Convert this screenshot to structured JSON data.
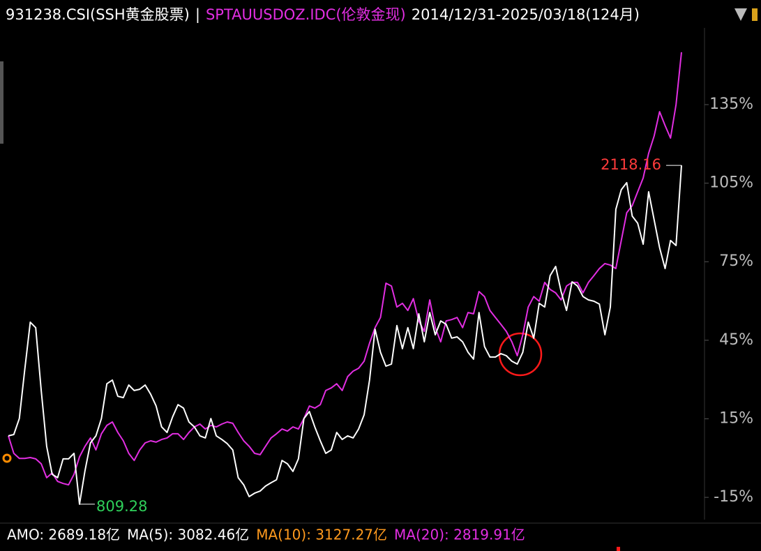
{
  "chart_data": {
    "type": "line",
    "title_parts": [
      {
        "text": "931238.CSI(SSH黄金股票)",
        "color": "#ffffff"
      },
      {
        "text": "|",
        "color": "#ffffff"
      },
      {
        "text": "SPTAUUSDOZ.IDC(伦敦金现)",
        "color": "#e22ee2"
      },
      {
        "text": "2014/12/31-2025/03/18(124月)",
        "color": "#ffffff"
      }
    ],
    "ylim": [
      -23.5,
      164.3
    ],
    "yticks": [
      {
        "value": -15,
        "label": "-15%"
      },
      {
        "value": 15,
        "label": "15%"
      },
      {
        "value": 45,
        "label": "45%"
      },
      {
        "value": 75,
        "label": "75%"
      },
      {
        "value": 105,
        "label": "105%"
      },
      {
        "value": 135,
        "label": "135%"
      }
    ],
    "series": [
      {
        "name": "931238.CSI(SSH黄金股票)",
        "color": "#ffffff",
        "values": [
          8.5,
          9.0,
          15.1,
          33.8,
          51.9,
          49.8,
          25.8,
          4.5,
          -6.2,
          -7.5,
          -0.3,
          -0.3,
          1.8,
          -17.6,
          -4.9,
          5.8,
          8.5,
          15.1,
          28.4,
          29.8,
          23.6,
          23.1,
          27.9,
          25.8,
          26.3,
          27.9,
          24.4,
          19.9,
          11.9,
          9.8,
          15.7,
          20.4,
          19.1,
          13.8,
          11.9,
          8.5,
          7.7,
          15.1,
          8.5,
          7.1,
          5.5,
          3.1,
          -7.5,
          -10.2,
          -14.7,
          -13.4,
          -12.6,
          -10.7,
          -9.4,
          -8.3,
          -0.9,
          -2.2,
          -5.1,
          -0.3,
          15.1,
          17.8,
          11.9,
          6.6,
          1.8,
          3.1,
          9.8,
          7.1,
          8.5,
          7.7,
          11.1,
          16.5,
          29.8,
          49.2,
          40.4,
          35.1,
          35.9,
          50.6,
          41.8,
          49.8,
          41.8,
          55.1,
          44.4,
          55.6,
          47.1,
          52.4,
          51.1,
          45.8,
          46.3,
          44.4,
          40.4,
          37.8,
          55.6,
          42.6,
          38.6,
          38.6,
          39.9,
          39.1,
          37.0,
          35.9,
          40.4,
          51.9,
          45.8,
          59.1,
          57.7,
          69.7,
          73.2,
          63.6,
          56.4,
          67.3,
          65.7,
          61.7,
          60.4,
          59.9,
          58.8,
          47.1,
          57.7,
          95.0,
          102.5,
          105.2,
          92.4,
          89.7,
          81.7,
          101.7,
          91.0,
          80.4,
          72.4,
          83.1,
          81.2,
          111.8
        ]
      },
      {
        "name": "SPTAUUSDOZ.IDC(伦敦金现)",
        "color": "#e22ee2",
        "values": [
          8.5,
          1.8,
          -0.1,
          -0.1,
          0.2,
          -0.3,
          -2.2,
          -7.5,
          -5.7,
          -8.9,
          -9.7,
          -10.2,
          -6.2,
          0.5,
          4.5,
          7.7,
          3.1,
          9.3,
          12.5,
          13.8,
          9.8,
          6.6,
          1.8,
          -0.9,
          3.1,
          5.8,
          6.6,
          6.1,
          7.1,
          7.7,
          9.3,
          9.3,
          7.1,
          9.8,
          11.9,
          13.0,
          11.1,
          12.5,
          11.9,
          13.0,
          13.8,
          13.3,
          9.8,
          6.6,
          4.5,
          1.8,
          1.3,
          4.5,
          7.7,
          9.3,
          11.1,
          10.3,
          11.9,
          11.1,
          15.1,
          19.9,
          19.1,
          20.4,
          25.8,
          26.8,
          28.4,
          25.8,
          31.1,
          33.2,
          34.3,
          37.0,
          43.9,
          49.8,
          53.7,
          66.8,
          65.7,
          57.7,
          59.1,
          56.4,
          60.9,
          52.4,
          48.4,
          60.4,
          49.8,
          44.4,
          52.4,
          52.9,
          53.7,
          49.8,
          55.6,
          55.1,
          63.6,
          61.7,
          56.4,
          53.7,
          51.1,
          48.4,
          44.4,
          39.1,
          47.1,
          57.7,
          61.7,
          59.9,
          67.1,
          64.4,
          63.1,
          60.4,
          65.7,
          67.1,
          67.1,
          63.1,
          67.1,
          69.7,
          72.4,
          74.3,
          73.7,
          72.4,
          83.1,
          93.7,
          96.4,
          101.7,
          107.0,
          116.4,
          123.0,
          132.3,
          127.0,
          122.2,
          135.0,
          155.0
        ]
      }
    ],
    "annotations": [
      {
        "text": "2118.16",
        "color": "#ff3b3b"
      },
      {
        "text": "809.28",
        "color": "#2fd05a"
      }
    ],
    "indicators": [
      {
        "text": "AMO: 2689.18亿",
        "color": "#ffffff"
      },
      {
        "text": "MA(5): 3082.46亿",
        "color": "#ffffff"
      },
      {
        "text": "MA(10): 3127.27亿",
        "color": "#ff9a1e"
      },
      {
        "text": "MA(20): 2819.91亿",
        "color": "#e22ee2"
      }
    ]
  }
}
